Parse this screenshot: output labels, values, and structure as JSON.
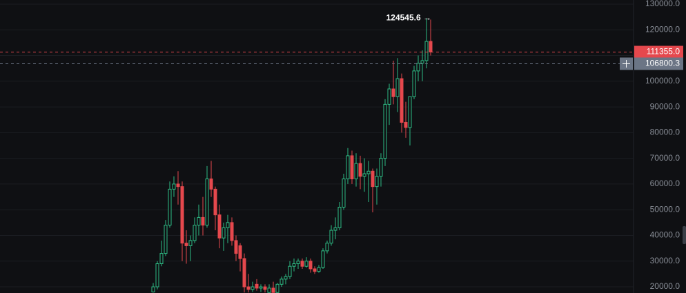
{
  "chart_data": {
    "type": "candlestick",
    "up_color": "#2ebd85",
    "down_color": "#e5484d",
    "ylim": [
      17600,
      131600
    ],
    "yticks": [
      {
        "value": 20000,
        "label": "20000.0"
      },
      {
        "value": 30000,
        "label": "30000.0"
      },
      {
        "value": 40000,
        "label": "40000.0"
      },
      {
        "value": 50000,
        "label": "50000.0"
      },
      {
        "value": 60000,
        "label": "60000.0"
      },
      {
        "value": 70000,
        "label": "70000.0"
      },
      {
        "value": 80000,
        "label": "80000.0"
      },
      {
        "value": 90000,
        "label": "90000.0"
      },
      {
        "value": 100000,
        "label": "100000.0"
      },
      {
        "value": 110000,
        "label": "110000.0"
      },
      {
        "value": 120000,
        "label": "120000.0"
      },
      {
        "value": 130000,
        "label": "130000.0"
      }
    ],
    "grid": true,
    "open": [
      18000,
      20000,
      29000,
      33000,
      44000,
      58000,
      60000,
      59000,
      37000,
      36000,
      38000,
      44000,
      47000,
      44000,
      62000,
      58000,
      48000,
      39000,
      43000,
      45000,
      38000,
      36000,
      31000,
      20000,
      19000,
      21000,
      19500,
      20000,
      17800,
      19500,
      17800,
      21000,
      23000,
      24000,
      28000,
      29000,
      30000,
      28000,
      30000,
      27000,
      26000,
      27500,
      34000,
      37000,
      42000,
      43000,
      51000,
      62000,
      71000,
      62000,
      68000,
      63000,
      64000,
      65000,
      59000,
      63000,
      70000,
      91000,
      97000,
      94000,
      101000,
      84000,
      82000,
      94000,
      104000,
      107000,
      108000,
      115500
    ],
    "high": [
      21500,
      30000,
      38000,
      46000,
      61000,
      63000,
      65000,
      61000,
      42000,
      40000,
      47000,
      52000,
      55000,
      67000,
      69000,
      59000,
      52000,
      45000,
      48000,
      47000,
      40000,
      37000,
      33000,
      25000,
      22000,
      23000,
      21000,
      21000,
      21000,
      22000,
      21500,
      24000,
      25000,
      30000,
      31000,
      31000,
      31000,
      31500,
      31000,
      28000,
      28500,
      35000,
      38000,
      44000,
      47000,
      53000,
      64000,
      74000,
      73000,
      72000,
      71000,
      70000,
      69000,
      66000,
      66000,
      72000,
      93000,
      99000,
      108000,
      109000,
      103000,
      92000,
      94000,
      106000,
      110000,
      112000,
      124545.6,
      124000
    ],
    "low": [
      17800,
      19000,
      28000,
      32000,
      43000,
      55000,
      52000,
      30000,
      29000,
      30000,
      37000,
      40000,
      40000,
      43000,
      55000,
      42000,
      35000,
      34000,
      37000,
      36000,
      30000,
      26000,
      17800,
      17800,
      18000,
      18500,
      18000,
      17800,
      17700,
      17800,
      17700,
      20000,
      21000,
      23000,
      26000,
      27000,
      27000,
      27500,
      25500,
      25000,
      25500,
      27000,
      33000,
      36000,
      38500,
      42000,
      50000,
      60000,
      60000,
      59000,
      58000,
      57000,
      53000,
      49000,
      52000,
      59000,
      67000,
      83000,
      91000,
      88000,
      80000,
      78000,
      75000,
      93000,
      100000,
      100000,
      105000,
      110000
    ],
    "close": [
      20000,
      29000,
      33000,
      44000,
      58000,
      60000,
      59000,
      37000,
      36000,
      38000,
      44000,
      47000,
      44000,
      62000,
      58000,
      48000,
      39000,
      43000,
      45000,
      38000,
      33000,
      31000,
      20000,
      19000,
      20000,
      19500,
      20000,
      19000,
      19500,
      17800,
      21000,
      23000,
      24000,
      28000,
      29000,
      30000,
      28000,
      30000,
      27000,
      26000,
      27500,
      34000,
      37000,
      42000,
      43000,
      51000,
      62000,
      71000,
      62000,
      68000,
      63000,
      64000,
      65000,
      59000,
      63000,
      70000,
      91000,
      97000,
      94000,
      101000,
      84000,
      82000,
      94000,
      104000,
      107000,
      108000,
      115500,
      111355
    ],
    "price_lines": [
      {
        "value": 111355.0,
        "label": "111355.0",
        "color": "#e5484d"
      },
      {
        "value": 106800.3,
        "label": "106800.3",
        "color": "#6b7585"
      }
    ],
    "high_label": {
      "value": 124545.6,
      "label": "124545.6 →"
    }
  }
}
